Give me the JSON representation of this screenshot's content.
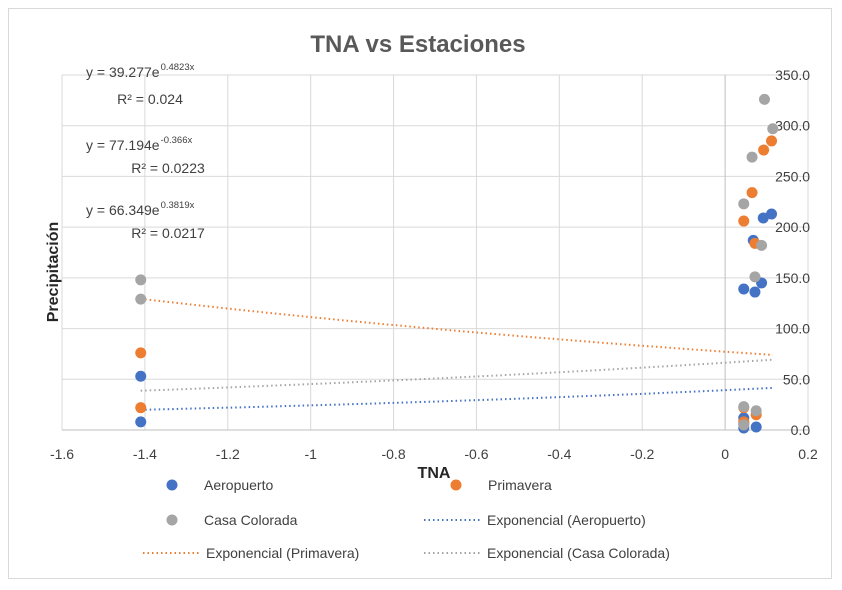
{
  "chart_data": {
    "type": "scatter",
    "title": "TNA vs Estaciones",
    "xlabel": "TNA",
    "ylabel": "Precipitación",
    "xlim": [
      -1.6,
      0.2
    ],
    "ylim": [
      0,
      350
    ],
    "x_ticks": [
      "-1.6",
      "-1.4",
      "-1.2",
      "-1",
      "-0.8",
      "-0.6",
      "-0.4",
      "-0.2",
      "0",
      "0.2"
    ],
    "y_ticks": [
      "0.0",
      "50.0",
      "100.0",
      "150.0",
      "200.0",
      "250.0",
      "300.0",
      "350.0"
    ],
    "series": [
      {
        "name": "Aeropuerto",
        "color": "#4472C4",
        "points": [
          [
            -1.41,
            8
          ],
          [
            -1.41,
            53
          ],
          [
            0.045,
            2
          ],
          [
            0.045,
            6
          ],
          [
            0.045,
            12
          ],
          [
            0.045,
            139
          ],
          [
            0.068,
            187
          ],
          [
            0.072,
            136
          ],
          [
            0.075,
            3
          ],
          [
            0.088,
            145
          ],
          [
            0.092,
            209
          ],
          [
            0.112,
            213
          ]
        ],
        "trend": {
          "label": "Exponencial (Aeropuerto)",
          "a": 39.277,
          "b": 0.4823,
          "equation": "y = 39.277e",
          "exponent": "0.4823x",
          "r2": "R² = 0.024"
        }
      },
      {
        "name": "Primavera",
        "color": "#ED7D31",
        "points": [
          [
            -1.41,
            22
          ],
          [
            -1.41,
            76
          ],
          [
            0.045,
            8
          ],
          [
            0.045,
            22
          ],
          [
            0.045,
            206
          ],
          [
            0.065,
            234
          ],
          [
            0.072,
            184
          ],
          [
            0.075,
            15
          ],
          [
            0.093,
            276
          ],
          [
            0.112,
            285
          ]
        ],
        "trend": {
          "label": "Exponencial (Primavera)",
          "a": 77.194,
          "b": -0.366,
          "equation": "y = 77.194e",
          "exponent": "-0.366x",
          "r2": "R² = 0.0223"
        }
      },
      {
        "name": "Casa Colorada",
        "color": "#A5A5A5",
        "points": [
          [
            -1.41,
            129
          ],
          [
            -1.41,
            148
          ],
          [
            0.045,
            5
          ],
          [
            0.045,
            23
          ],
          [
            0.045,
            223
          ],
          [
            0.065,
            269
          ],
          [
            0.072,
            151
          ],
          [
            0.075,
            19
          ],
          [
            0.088,
            182
          ],
          [
            0.095,
            326
          ],
          [
            0.115,
            297
          ]
        ],
        "trend": {
          "label": "Exponencial (Casa Colorada)",
          "a": 66.349,
          "b": 0.3819,
          "equation": "y = 66.349e",
          "exponent": "0.3819x",
          "r2": "R² = 0.0217"
        }
      }
    ],
    "legend": {
      "position": "bottom",
      "entries": [
        "Aeropuerto",
        "Primavera",
        "Casa Colorada",
        "Exponencial (Aeropuerto)",
        "Exponencial (Primavera)",
        "Exponencial (Casa Colorada)"
      ]
    },
    "grid": true
  }
}
